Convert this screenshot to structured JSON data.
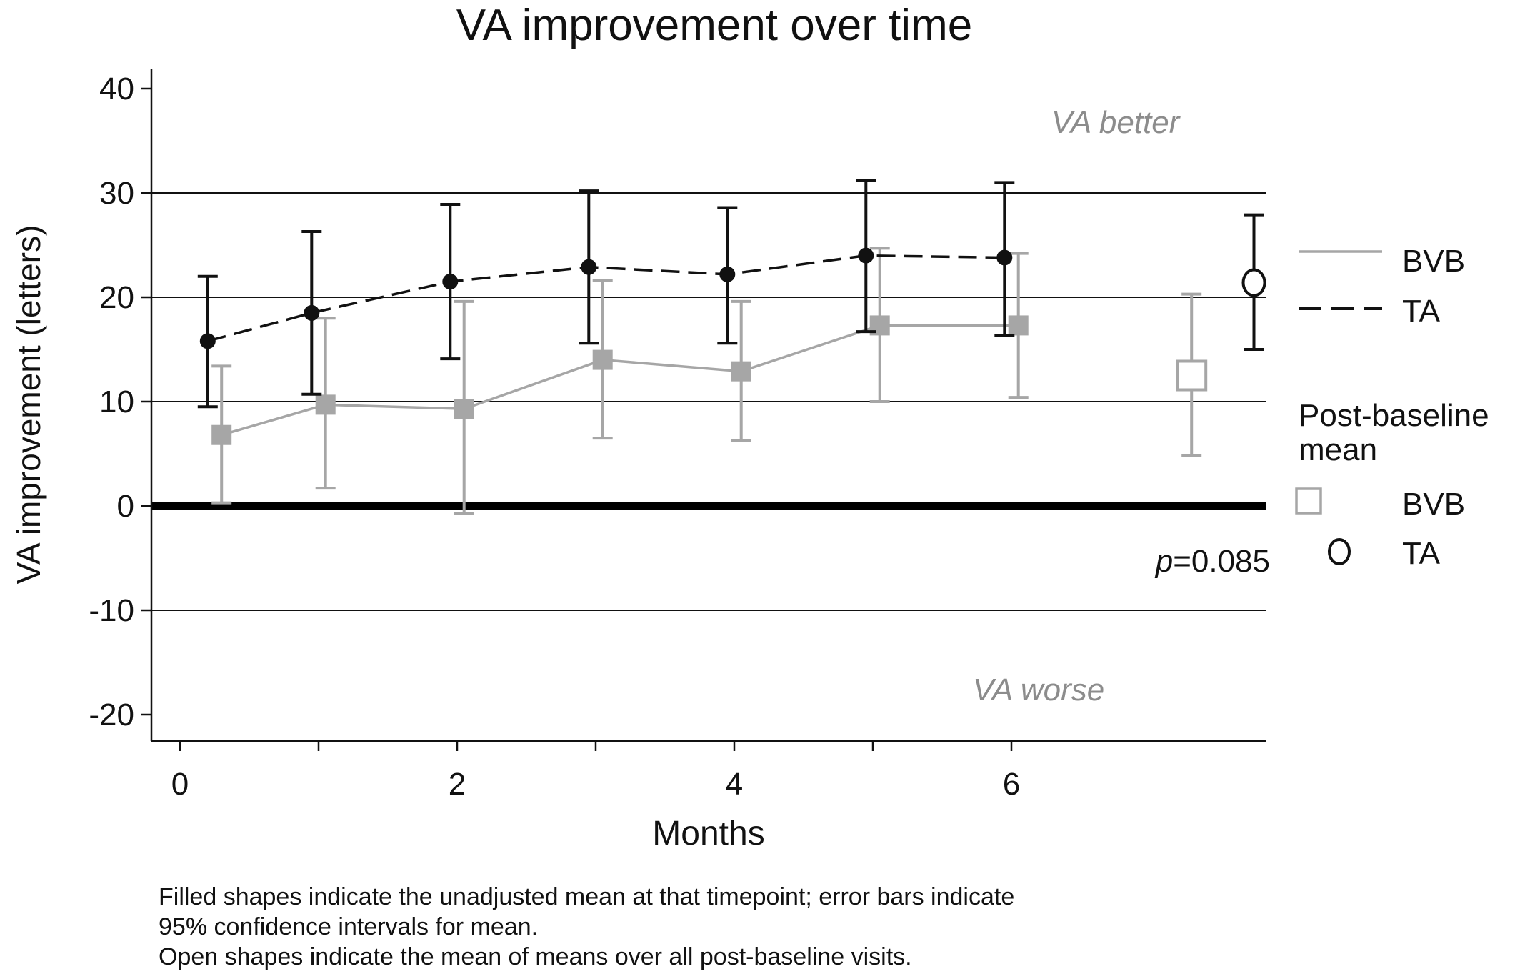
{
  "chart_data": {
    "type": "line",
    "title": "VA improvement over time",
    "xlabel": "Months",
    "ylabel": "VA improvement (letters)",
    "xlim": [
      -0.2,
      7.8
    ],
    "ylim": [
      -22,
      42
    ],
    "xticks": [
      0,
      2,
      4,
      6
    ],
    "xtick_labels": [
      "0",
      "2",
      "4",
      "6"
    ],
    "yticks": [
      -20,
      -10,
      0,
      10,
      20,
      30,
      40
    ],
    "ytick_labels": [
      "-20",
      "-10",
      "0",
      "10",
      "20",
      "30",
      "40"
    ],
    "grid": "horizontal lines at -10, 10, 20, 30; heavy zero line",
    "series": [
      {
        "name": "BVB",
        "style": "solid",
        "marker": "filled-square",
        "color": "#a6a6a6",
        "x": [
          0.3,
          1.05,
          2.05,
          3.05,
          4.05,
          5.05,
          6.05
        ],
        "y": [
          6.8,
          9.7,
          9.3,
          14.0,
          12.9,
          17.3,
          17.3
        ],
        "ci_low": [
          0.3,
          1.7,
          -0.7,
          6.5,
          6.3,
          10.0,
          10.4
        ],
        "ci_high": [
          13.4,
          18.0,
          19.6,
          21.6,
          19.6,
          24.7,
          24.2
        ]
      },
      {
        "name": "TA",
        "style": "dashed",
        "marker": "filled-circle",
        "color": "#111111",
        "x": [
          0.2,
          0.95,
          1.95,
          2.95,
          3.95,
          4.95,
          5.95
        ],
        "y": [
          15.8,
          18.5,
          21.5,
          22.9,
          22.2,
          24.0,
          23.8
        ],
        "ci_low": [
          9.5,
          10.7,
          14.1,
          15.6,
          15.6,
          16.7,
          16.3
        ],
        "ci_high": [
          22.0,
          26.3,
          28.9,
          30.2,
          28.6,
          31.2,
          31.0
        ]
      }
    ],
    "post_baseline_mean": [
      {
        "name": "BVB",
        "marker": "open-square",
        "color": "#a6a6a6",
        "x": 7.3,
        "y": 12.5,
        "ci_low": 4.8,
        "ci_high": 20.3
      },
      {
        "name": "TA",
        "marker": "open-circle",
        "color": "#111111",
        "x": 7.75,
        "y": 21.4,
        "ci_low": 15.0,
        "ci_high": 27.9
      }
    ],
    "annotations": {
      "better": "VA better",
      "worse": "VA worse",
      "p_italic": "p",
      "p_value": "=0.085"
    },
    "legend": {
      "placement": "right",
      "lines": [
        {
          "label": "BVB",
          "style": "solid",
          "color": "#a6a6a6"
        },
        {
          "label": "TA",
          "style": "dashed",
          "color": "#111111"
        }
      ],
      "group_title_line1": "Post-baseline",
      "group_title_line2": "mean",
      "markers": [
        {
          "label": "BVB",
          "marker": "open-square",
          "color": "#a6a6a6"
        },
        {
          "label": "TA",
          "marker": "open-circle",
          "color": "#111111"
        }
      ]
    },
    "footnote": [
      "Filled shapes indicate the unadjusted mean at that timepoint; error bars indicate",
      "95% confidence intervals for mean.",
      "Open shapes indicate the mean of means over all post-baseline visits."
    ]
  }
}
